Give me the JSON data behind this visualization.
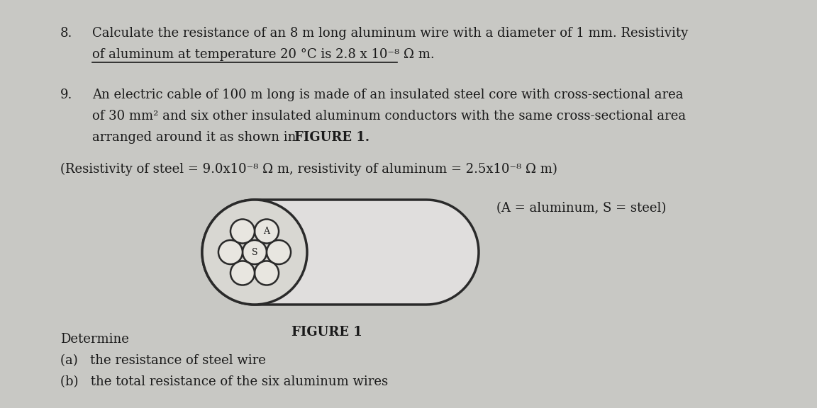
{
  "bg_color": "#c8c8c4",
  "page_color": "#dcdbd6",
  "text_color": "#1a1a1a",
  "fig_width": 11.52,
  "fig_height": 5.76,
  "q8_number": "8.",
  "q8_line1": "Calculate the resistance of an 8 m long aluminum wire with a diameter of 1 mm. Resistivity",
  "q8_line2": "of aluminum at temperature 20 °C is 2.8 x 10⁻⁸ Ω m.",
  "q9_number": "9.",
  "q9_line1": "An electric cable of 100 m long is made of an insulated steel core with cross-sectional area",
  "q9_line2": "of 30 mm² and six other insulated aluminum conductors with the same cross-sectional area",
  "q9_line3": "arranged around it as shown in ",
  "q9_bold": "FIGURE 1.",
  "resistivity_line": "(Resistivity of steel = 9.0x10⁻⁸ Ω m, resistivity of aluminum = 2.5x10⁻⁸ Ω m)",
  "legend_text": "(A = aluminum, S = steel)",
  "figure_label": "FIGURE 1",
  "determine_text": "Determine",
  "part_a": "(a)   the resistance of steel wire",
  "part_b": "(b)   the total resistance of the six aluminum wires",
  "wire_facecolor": "#e8e6e0",
  "wire_edgecolor": "#2a2a2a",
  "cable_facecolor": "#e0dedd",
  "cable_edgecolor": "#2a2a2a"
}
